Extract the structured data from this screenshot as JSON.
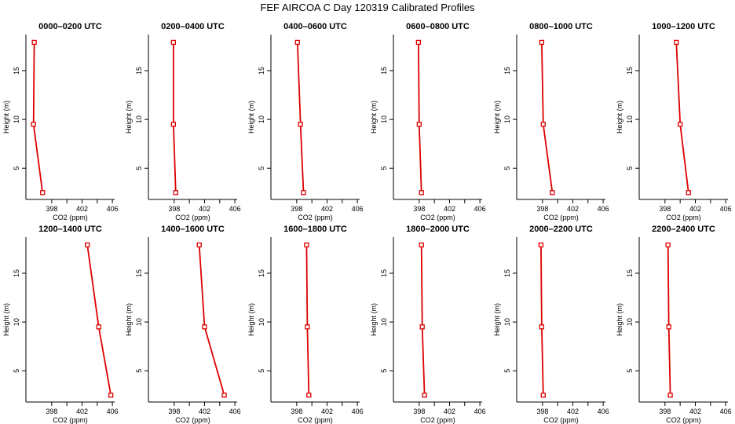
{
  "title": "FEF AIRCOA C  Day 120319  Calibrated Profiles",
  "chart_data": {
    "type": "line",
    "xlabel": "CO2 (ppm)",
    "ylabel": "Height (m)",
    "xlim": [
      394.6,
      406.3
    ],
    "ylim": [
      1.8,
      18.7
    ],
    "xticks": [
      398,
      402,
      406
    ],
    "yticks": [
      5,
      10,
      15
    ],
    "line_color": "#dd0000",
    "marker_shape": "open square",
    "heights": [
      17.9,
      9.5,
      2.5
    ],
    "panels": [
      {
        "title": "0000–0200 UTC",
        "co2": [
          395.7,
          395.6,
          396.8
        ]
      },
      {
        "title": "0200–0400 UTC",
        "co2": [
          397.9,
          397.9,
          398.2
        ]
      },
      {
        "title": "0400–0600 UTC",
        "co2": [
          398.1,
          398.5,
          398.9
        ]
      },
      {
        "title": "0600–0800 UTC",
        "co2": [
          397.9,
          398.0,
          398.3
        ]
      },
      {
        "title": "0800–1000 UTC",
        "co2": [
          397.9,
          398.1,
          399.3
        ]
      },
      {
        "title": "1000–1200 UTC",
        "co2": [
          399.5,
          400.0,
          401.1
        ]
      },
      {
        "title": "1200–1400 UTC",
        "co2": [
          402.7,
          404.2,
          405.8
        ]
      },
      {
        "title": "1400–1600 UTC",
        "co2": [
          401.3,
          402.0,
          404.6
        ]
      },
      {
        "title": "1600–1800 UTC",
        "co2": [
          399.3,
          399.4,
          399.6
        ]
      },
      {
        "title": "1800–2000 UTC",
        "co2": [
          398.3,
          398.4,
          398.7
        ]
      },
      {
        "title": "2000–2200 UTC",
        "co2": [
          397.8,
          397.9,
          398.1
        ]
      },
      {
        "title": "2200–2400 UTC",
        "co2": [
          398.4,
          398.5,
          398.7
        ]
      }
    ]
  }
}
